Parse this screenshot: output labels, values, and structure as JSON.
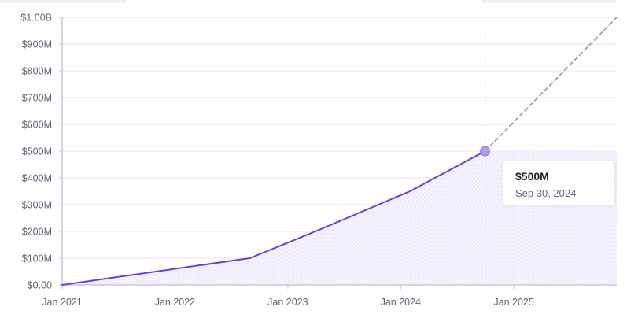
{
  "chart_data": {
    "type": "line",
    "title": "",
    "xlabel": "",
    "ylabel": "",
    "x_tick_labels": [
      "Jan 2021",
      "Jan 2022",
      "Jan 2023",
      "Jan 2024",
      "Jan 2025"
    ],
    "y_tick_labels": [
      "$0.00",
      "$100M",
      "$200M",
      "$300M",
      "$400M",
      "$500M",
      "$600M",
      "$700M",
      "$800M",
      "$900M",
      "$1.00B"
    ],
    "ylim": [
      0,
      1000000000
    ],
    "xlim": [
      "2021-01-01",
      "2025-11-30"
    ],
    "grid": true,
    "series": [
      {
        "style": "solid",
        "color": "#5b44e0",
        "points": [
          {
            "x": "2021-01-01",
            "y": 0
          },
          {
            "x": "2022-08-31",
            "y": 100000000
          },
          {
            "x": "2023-03-31",
            "y": 200000000
          },
          {
            "x": "2024-01-31",
            "y": 350000000
          },
          {
            "x": "2024-09-30",
            "y": 500000000
          }
        ]
      },
      {
        "style": "dashed",
        "color": "#9a9cc4",
        "points": [
          {
            "x": "2024-09-30",
            "y": 500000000
          },
          {
            "x": "2025-11-30",
            "y": 1000000000
          }
        ]
      }
    ],
    "highlight": {
      "x": "2024-09-30",
      "y": 500000000,
      "value_label": "$500M",
      "date_label": "Sep 30, 2024"
    }
  }
}
